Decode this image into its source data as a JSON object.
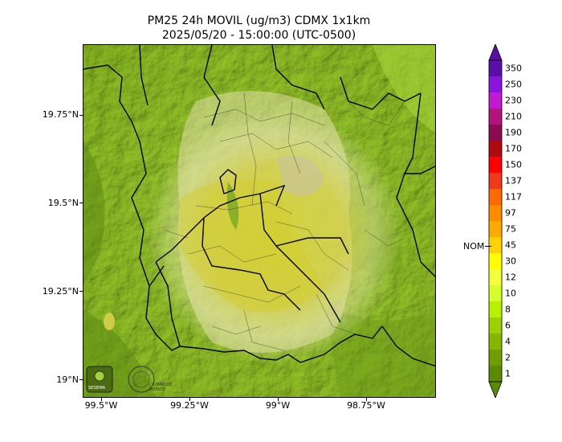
{
  "title": {
    "line1": "PM25 24h MOVIL (ug/m3) CDMX 1x1km",
    "line2": "2025/05/20 - 15:00:00 (UTC-0500)"
  },
  "axes": {
    "y_ticks": [
      "19.75°N",
      "19.5°N",
      "19.25°N",
      "19°N"
    ],
    "x_ticks": [
      "99.5°W",
      "99.25°W",
      "99°W",
      "98.75°W"
    ]
  },
  "colorbar": {
    "levels": [
      "350",
      "250",
      "230",
      "210",
      "190",
      "170",
      "150",
      "137",
      "117",
      "97",
      "75",
      "45",
      "30",
      "12",
      "10",
      "8",
      "6",
      "4",
      "2",
      "1"
    ],
    "colors": [
      "#5a0fa8",
      "#8a13e0",
      "#c21ad0",
      "#b4137d",
      "#8c0a50",
      "#b00a10",
      "#ff0000",
      "#ee3a1a",
      "#ff6a00",
      "#ff8c00",
      "#ffaa00",
      "#ffd200",
      "#ffff00",
      "#f2ff3a",
      "#d6ff2a",
      "#b8f000",
      "#9ad200",
      "#84b800",
      "#6e9e00",
      "#5a8a00"
    ],
    "nom_label": "NOM"
  },
  "logos": {
    "left": "SEDEMA",
    "right": "CIUDAD DE MÉXICO"
  },
  "colors": {
    "terrain_dark": "#5c8a12",
    "terrain_light": "#b6e33c",
    "urban": "#d6d27a",
    "pollution_high": "#d9d23a"
  }
}
